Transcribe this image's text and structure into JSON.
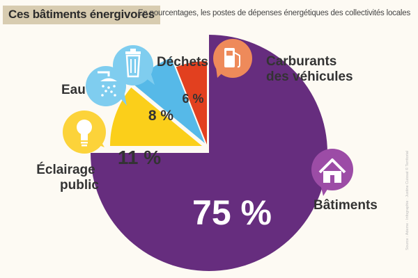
{
  "header": {
    "title": "Ces bâtiments énergivores",
    "subtitle": "En pourcentages, les postes de dépenses énergétiques des collectivités locales"
  },
  "source": "Source : Ademe · Infographie : Justine Cuissat © Territorial",
  "chart_data": {
    "type": "pie",
    "title": "Ces bâtiments énergivores",
    "subtitle": "En pourcentages, les postes de dépenses énergétiques des collectivités locales",
    "slices": [
      {
        "label": "Bâtiments",
        "value": 75,
        "value_label": "75 %",
        "color": "#662d7e",
        "icon": "house-icon"
      },
      {
        "label": "Éclairage public",
        "value": 11,
        "value_label": "11 %",
        "color": "#fbcf1a",
        "icon": "light-bulb-icon"
      },
      {
        "label": "Eau",
        "value": 8,
        "value_label": "8 %",
        "color": "#56b9e8",
        "icon": "shower-icon"
      },
      {
        "label": "Déchets",
        "value": 0,
        "value_label": "",
        "color": "#56b9e8",
        "icon": "trash-icon"
      },
      {
        "label": "Carburants des véhicules",
        "value": 6,
        "value_label": "6 %",
        "color": "#e2401f",
        "icon": "fuel-pump-icon"
      }
    ],
    "colors": {
      "bubble_orange": "#ee8a5a",
      "bubble_purple": "#9c4ca6",
      "bubble_blue": "#7fcdef",
      "bubble_yellow": "#fcd33a"
    }
  }
}
